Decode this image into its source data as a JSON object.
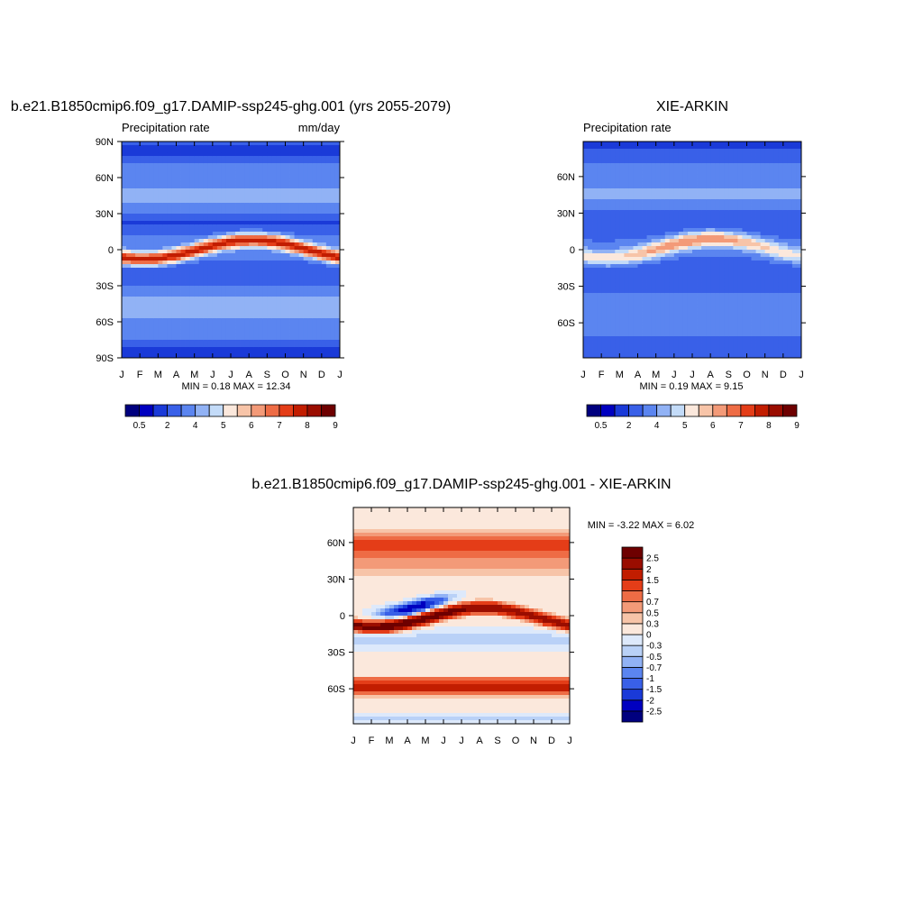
{
  "chart_data": [
    {
      "type": "heatmap",
      "title": "b.e21.B1850cmip6.f09_g17.DAMIP-ssp245-ghg.001 (yrs 2055-2079)",
      "left_string": "Precipitation rate",
      "right_string": "mm/day",
      "x_ticks": [
        "J",
        "F",
        "M",
        "A",
        "M",
        "J",
        "J",
        "A",
        "S",
        "O",
        "N",
        "D",
        "J"
      ],
      "y_ticks": [
        {
          "lat": 90,
          "label": "90N"
        },
        {
          "lat": 60,
          "label": "60N"
        },
        {
          "lat": 30,
          "label": "30N"
        },
        {
          "lat": 0,
          "label": "0"
        },
        {
          "lat": -30,
          "label": "30S"
        },
        {
          "lat": -60,
          "label": "60S"
        },
        {
          "lat": -90,
          "label": "90S"
        }
      ],
      "ylim": [
        -90,
        90
      ],
      "minmax": "MIN =   0.18 MAX =  12.34",
      "colorbar": {
        "labels": [
          "0.5",
          "2",
          "4",
          "5",
          "6",
          "7",
          "8",
          "9"
        ],
        "levels": [
          0.2,
          0.5,
          1,
          2,
          3,
          4,
          5,
          6,
          7,
          8,
          9,
          10,
          11,
          12,
          13
        ],
        "colors": [
          "#00007f",
          "#0000c0",
          "#1a3ad8",
          "#3960e8",
          "#5b85f0",
          "#91b2f5",
          "#c3dbf8",
          "#fbe8dc",
          "#f7c4a8",
          "#f39a78",
          "#ee6c45",
          "#e43d18",
          "#c21d00",
          "#9a0d00",
          "#6e0000"
        ]
      },
      "field": "model"
    },
    {
      "type": "heatmap",
      "title": "XIE-ARKIN",
      "left_string": "Precipitation rate",
      "x_ticks": [
        "J",
        "F",
        "M",
        "A",
        "M",
        "J",
        "J",
        "A",
        "S",
        "O",
        "N",
        "D",
        "J"
      ],
      "y_ticks": [
        {
          "lat": 60,
          "label": "60N"
        },
        {
          "lat": 30,
          "label": "30N"
        },
        {
          "lat": 0,
          "label": "0"
        },
        {
          "lat": -30,
          "label": "30S"
        },
        {
          "lat": -60,
          "label": "60S"
        }
      ],
      "ylim": [
        -88.75,
        88.75
      ],
      "minmax": "MIN =   0.19 MAX =   9.15",
      "colorbar": {
        "labels": [
          "0.5",
          "2",
          "4",
          "5",
          "6",
          "7",
          "8",
          "9"
        ],
        "levels": [
          0.2,
          0.5,
          1,
          2,
          3,
          4,
          5,
          6,
          7,
          8,
          9,
          10,
          11,
          12,
          13
        ],
        "colors": [
          "#00007f",
          "#0000c0",
          "#1a3ad8",
          "#3960e8",
          "#5b85f0",
          "#91b2f5",
          "#c3dbf8",
          "#fbe8dc",
          "#f7c4a8",
          "#f39a78",
          "#ee6c45",
          "#e43d18",
          "#c21d00",
          "#9a0d00",
          "#6e0000"
        ]
      },
      "field": "obs"
    },
    {
      "type": "heatmap",
      "title": "b.e21.B1850cmip6.f09_g17.DAMIP-ssp245-ghg.001 - XIE-ARKIN",
      "x_ticks": [
        "J",
        "F",
        "M",
        "A",
        "M",
        "J",
        "J",
        "A",
        "S",
        "O",
        "N",
        "D",
        "J"
      ],
      "y_ticks": [
        {
          "lat": 60,
          "label": "60N"
        },
        {
          "lat": 30,
          "label": "30N"
        },
        {
          "lat": 0,
          "label": "0"
        },
        {
          "lat": -30,
          "label": "30S"
        },
        {
          "lat": -60,
          "label": "60S"
        }
      ],
      "ylim": [
        -88.75,
        88.75
      ],
      "minmax": "MIN =  -3.22 MAX =   6.02",
      "colorbar": {
        "labels": [
          "2.5",
          "2",
          "1.5",
          "1",
          "0.7",
          "0.5",
          "0.3",
          "0",
          "-0.3",
          "-0.5",
          "-0.7",
          "-1",
          "-1.5",
          "-2",
          "-2.5"
        ],
        "levels": [
          -2.5,
          -2,
          -1.5,
          -1,
          -0.7,
          -0.5,
          -0.3,
          0,
          0.3,
          0.5,
          0.7,
          1,
          1.5,
          2,
          2.5
        ],
        "colors": [
          "#00007f",
          "#0000c0",
          "#1a3ad8",
          "#3960e8",
          "#5b85f0",
          "#91b2f5",
          "#b9d1f7",
          "#dde9fb",
          "#fbe8dc",
          "#f7c4a8",
          "#f39a78",
          "#ee6c45",
          "#e43d18",
          "#c21d00",
          "#9a0d00",
          "#6e0000"
        ]
      },
      "field": "diff"
    }
  ]
}
